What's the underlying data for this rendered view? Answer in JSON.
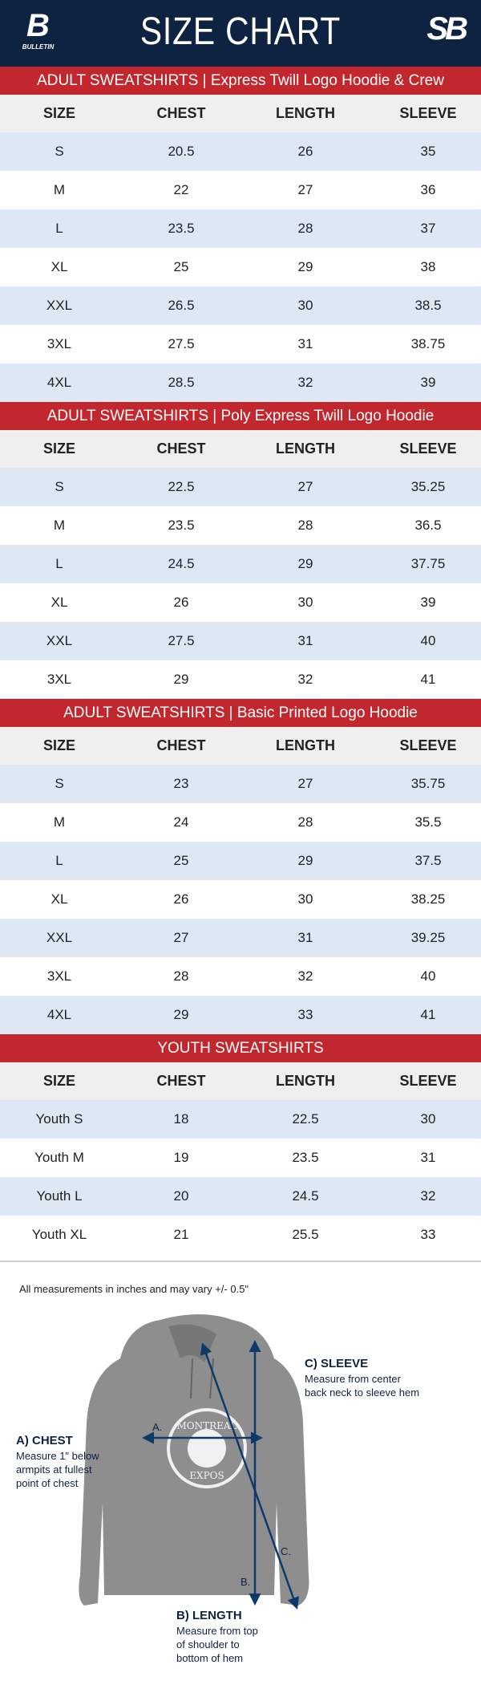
{
  "header": {
    "title": "SIZE CHART",
    "brand_left": "B",
    "brand_left_text": "BULLETIN",
    "brand_right": "SB"
  },
  "colors": {
    "navy": "#0e2241",
    "red": "#c1272d",
    "alt_row": "#dde8f4",
    "head_row": "#efefef"
  },
  "columns": [
    "SIZE",
    "CHEST",
    "LENGTH",
    "SLEEVE"
  ],
  "sections": [
    {
      "title": "ADULT SWEATSHIRTS | Express Twill Logo Hoodie & Crew",
      "rows": [
        [
          "S",
          "20.5",
          "26",
          "35"
        ],
        [
          "M",
          "22",
          "27",
          "36"
        ],
        [
          "L",
          "23.5",
          "28",
          "37"
        ],
        [
          "XL",
          "25",
          "29",
          "38"
        ],
        [
          "XXL",
          "26.5",
          "30",
          "38.5"
        ],
        [
          "3XL",
          "27.5",
          "31",
          "38.75"
        ],
        [
          "4XL",
          "28.5",
          "32",
          "39"
        ]
      ]
    },
    {
      "title": "ADULT SWEATSHIRTS | Poly Express Twill Logo Hoodie",
      "rows": [
        [
          "S",
          "22.5",
          "27",
          "35.25"
        ],
        [
          "M",
          "23.5",
          "28",
          "36.5"
        ],
        [
          "L",
          "24.5",
          "29",
          "37.75"
        ],
        [
          "XL",
          "26",
          "30",
          "39"
        ],
        [
          "XXL",
          "27.5",
          "31",
          "40"
        ],
        [
          "3XL",
          "29",
          "32",
          "41"
        ]
      ]
    },
    {
      "title": "ADULT SWEATSHIRTS | Basic Printed Logo Hoodie",
      "rows": [
        [
          "S",
          "23",
          "27",
          "35.75"
        ],
        [
          "M",
          "24",
          "28",
          "35.5"
        ],
        [
          "L",
          "25",
          "29",
          "37.5"
        ],
        [
          "XL",
          "26",
          "30",
          "38.25"
        ],
        [
          "XXL",
          "27",
          "31",
          "39.25"
        ],
        [
          "3XL",
          "28",
          "32",
          "40"
        ],
        [
          "4XL",
          "29",
          "33",
          "41"
        ]
      ]
    },
    {
      "title": "YOUTH SWEATSHIRTS",
      "rows": [
        [
          "Youth S",
          "18",
          "22.5",
          "30"
        ],
        [
          "Youth M",
          "19",
          "23.5",
          "31"
        ],
        [
          "Youth L",
          "20",
          "24.5",
          "32"
        ],
        [
          "Youth XL",
          "21",
          "25.5",
          "33"
        ]
      ]
    }
  ],
  "diagram": {
    "note": "All measurements in inches and may vary +/- 0.5\"",
    "chest": {
      "title": "A) CHEST",
      "text": "Measure 1\" below armpits at fullest point of chest",
      "marker": "A."
    },
    "length": {
      "title": "B) LENGTH",
      "text": "Measure from top of shoulder to bottom of hem",
      "marker": "B."
    },
    "sleeve": {
      "title": "C) SLEEVE",
      "text": "Measure from center back neck to sleeve hem",
      "marker": "C."
    },
    "logo_text_top": "MONTREAL",
    "logo_text_bottom": "EXPOS"
  }
}
